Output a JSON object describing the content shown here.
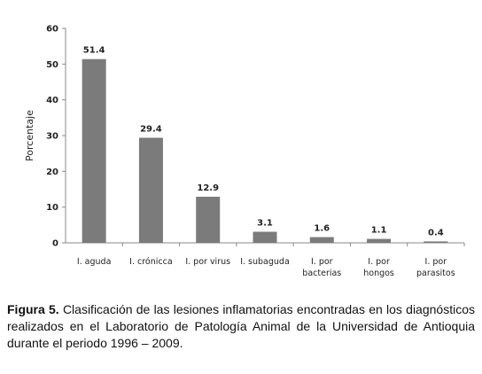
{
  "chart_data": {
    "type": "bar",
    "categories": [
      [
        "I. aguda"
      ],
      [
        "I. crónicca"
      ],
      [
        "I. por virus"
      ],
      [
        "I. subaguda"
      ],
      [
        "I. por",
        "bacterias"
      ],
      [
        "I. por",
        "hongos"
      ],
      [
        "I. por",
        "parasitos"
      ]
    ],
    "values": [
      51.4,
      29.4,
      12.9,
      3.1,
      1.6,
      1.1,
      0.4
    ],
    "data_labels": [
      "51.4",
      "29.4",
      "12.9",
      "3.1",
      "1.6",
      "1.1",
      "0.4"
    ],
    "ylabel": "Porcentaje",
    "xlabel": "",
    "title": "",
    "ylim": [
      0,
      60
    ],
    "yticks": [
      0,
      10,
      20,
      30,
      40,
      50,
      60
    ],
    "grid": false,
    "legend": "none",
    "bar_color": "#7b7b7b"
  },
  "caption": {
    "label": "Figura 5.",
    "text": " Clasificación de las lesiones inflamatorias encontradas en los diagnósticos realizados en el Laboratorio de Patología Animal de la Universidad de Antioquia durante el periodo 1996 – 2009."
  }
}
